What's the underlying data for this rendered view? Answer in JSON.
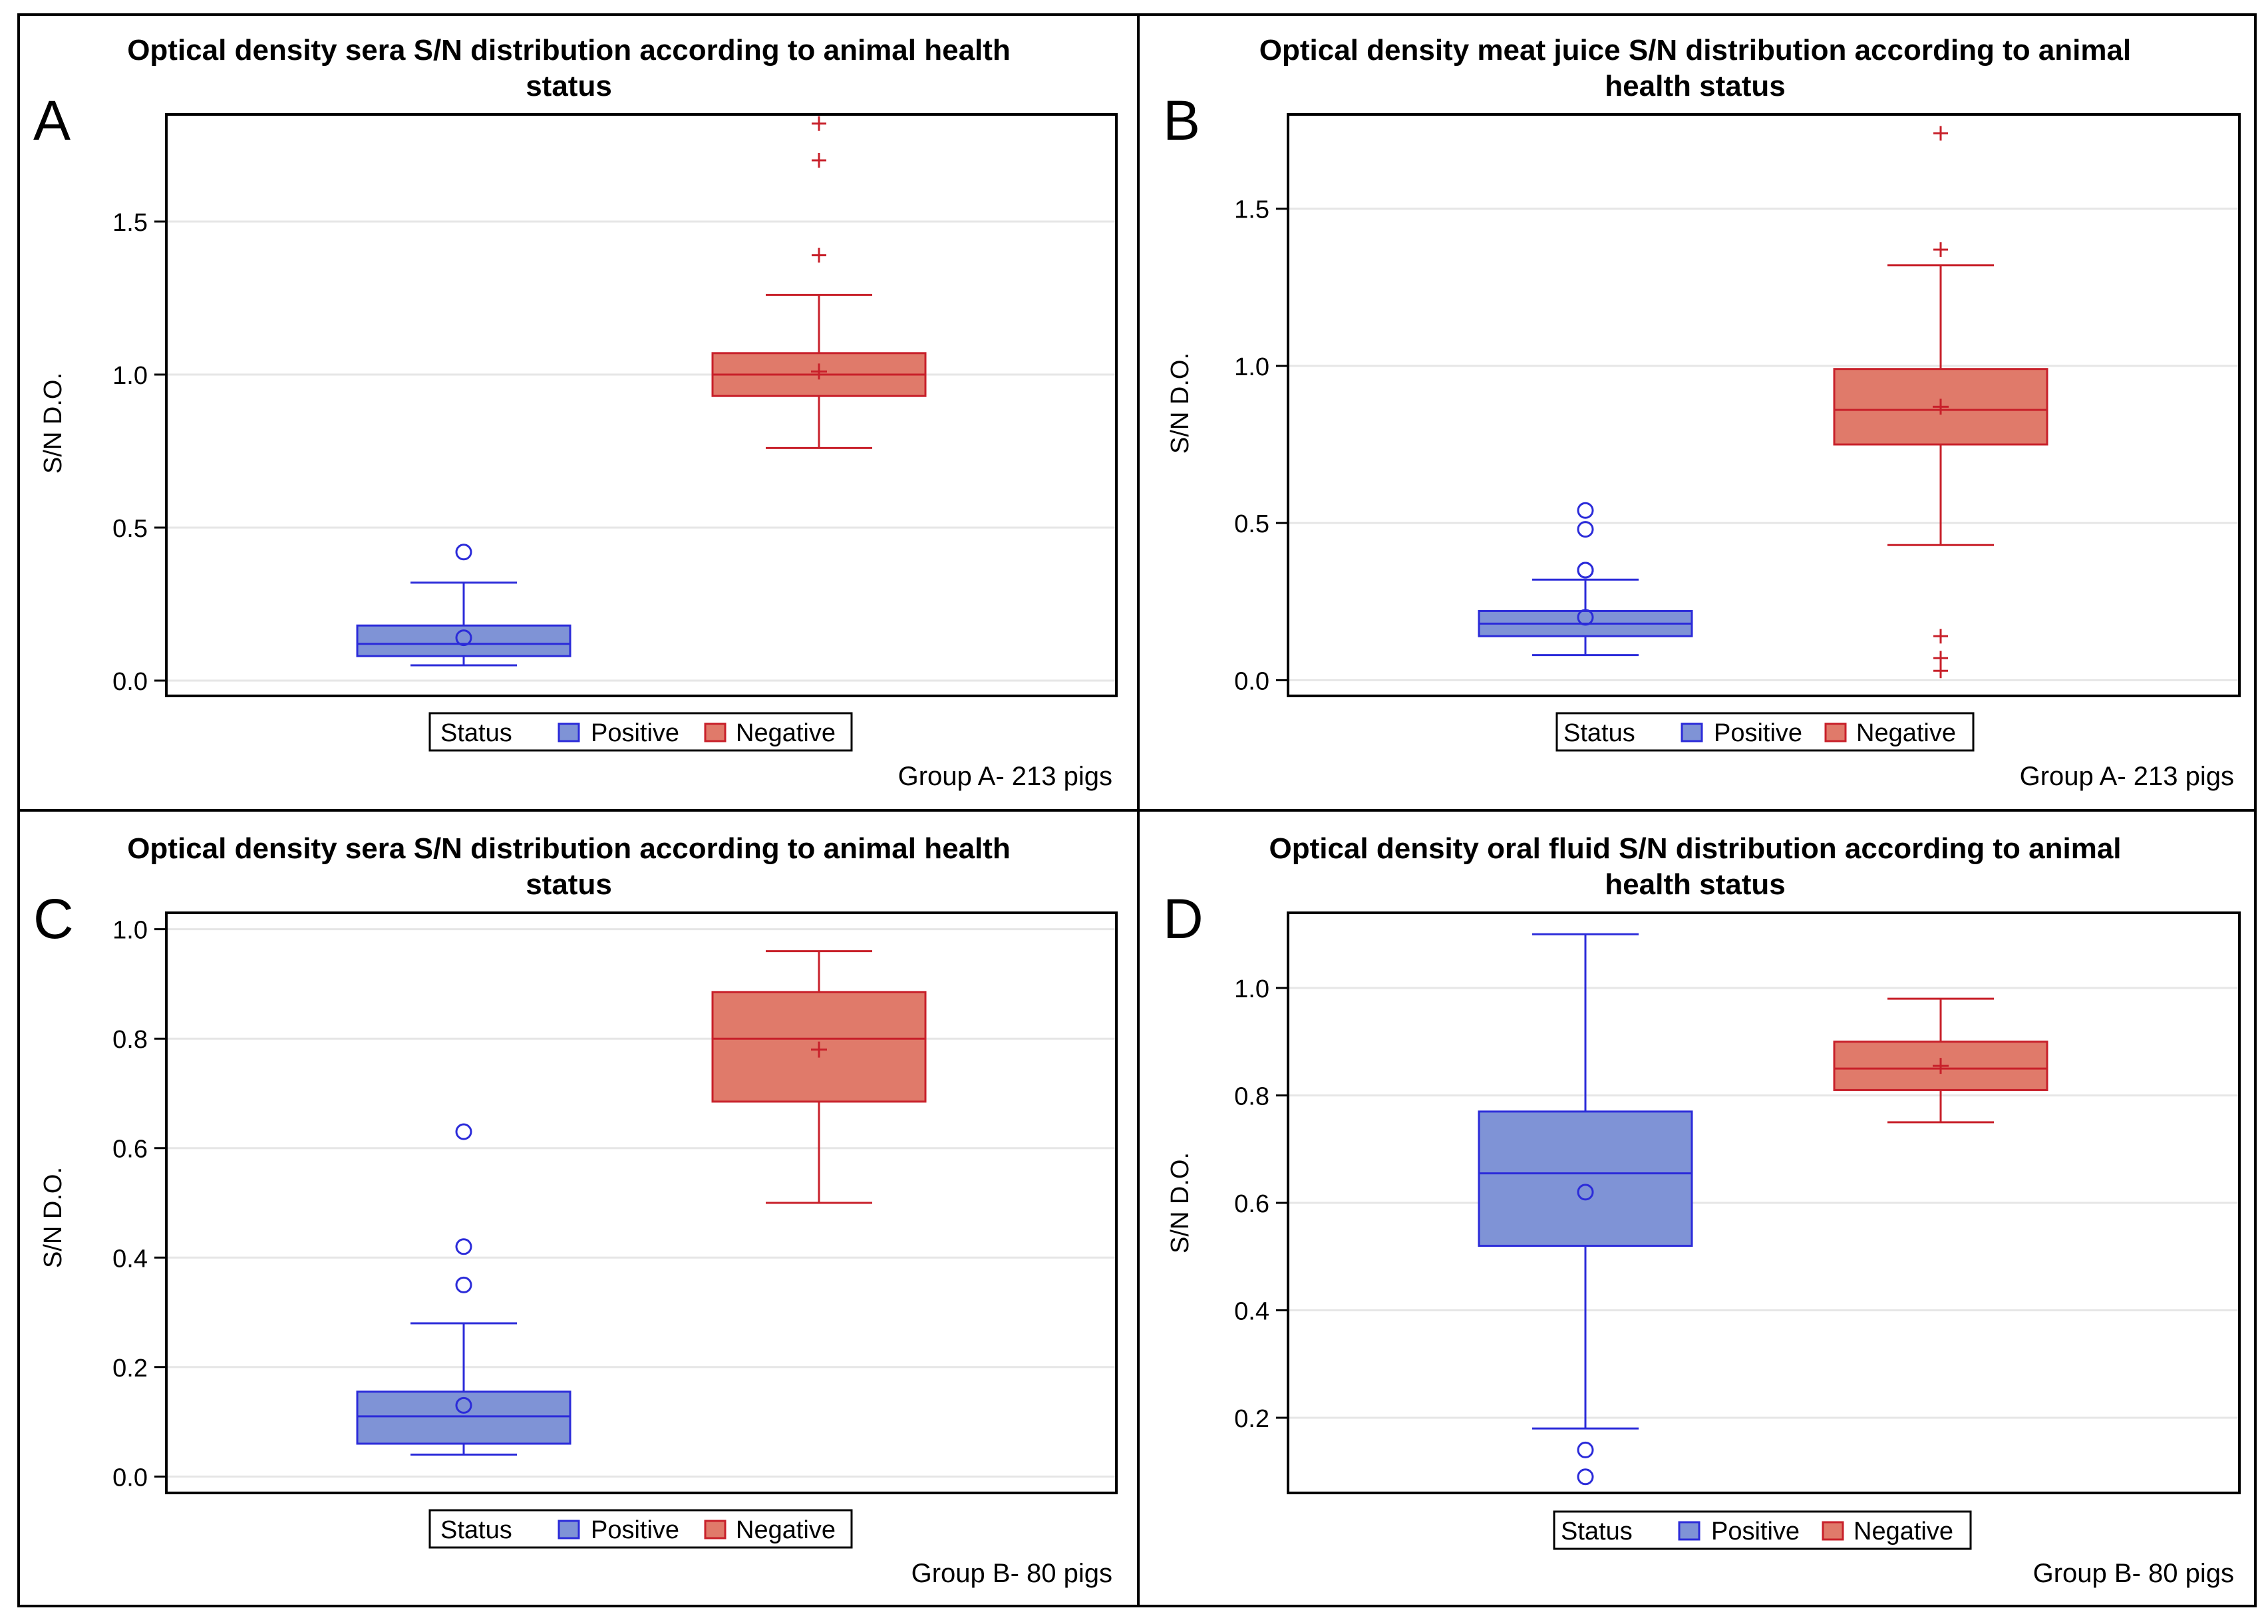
{
  "panels": [
    {
      "letter": "A",
      "title_lines": [
        "Optical density sera S/N distribution according to animal health",
        "status"
      ],
      "ylabel": "S/N D.O.",
      "footnote": "Group A- 213 pigs",
      "legend": {
        "title": "Status",
        "items": [
          "Positive",
          "Negative"
        ]
      },
      "yticks": [
        "0.0",
        "0.5",
        "1.0",
        "1.5"
      ]
    },
    {
      "letter": "B",
      "title_lines": [
        "Optical density meat juice S/N distribution according to animal",
        "health status"
      ],
      "ylabel": "S/N D.O.",
      "footnote": "Group A- 213 pigs",
      "legend": {
        "title": "Status",
        "items": [
          "Positive",
          "Negative"
        ]
      },
      "yticks": [
        "0.0",
        "0.5",
        "1.0",
        "1.5"
      ]
    },
    {
      "letter": "C",
      "title_lines": [
        "Optical density sera S/N distribution according to animal health",
        "status"
      ],
      "ylabel": "S/N D.O.",
      "footnote": "Group B- 80 pigs",
      "legend": {
        "title": "Status",
        "items": [
          "Positive",
          "Negative"
        ]
      },
      "yticks": [
        "0.0",
        "0.2",
        "0.4",
        "0.6",
        "0.8",
        "1.0"
      ]
    },
    {
      "letter": "D",
      "title_lines": [
        "Optical density oral fluid S/N distribution according to animal",
        "health status"
      ],
      "ylabel": "S/N D.O.",
      "footnote": "Group B- 80 pigs",
      "legend": {
        "title": "Status",
        "items": [
          "Positive",
          "Negative"
        ]
      },
      "yticks": [
        "0.2",
        "0.4",
        "0.6",
        "0.8",
        "1.0"
      ]
    }
  ],
  "colors": {
    "positive_fill": "#7f93d6",
    "positive_line": "#2b2bd9",
    "negative_fill": "#e07a6a",
    "negative_line": "#c8202a",
    "grid": "#e6e6e6"
  },
  "chart_data": [
    {
      "type": "box",
      "panel": "A",
      "ylim": [
        -0.05,
        1.85
      ],
      "yticks": [
        0.0,
        0.5,
        1.0,
        1.5
      ],
      "series": [
        {
          "name": "Positive",
          "whisker_low": 0.05,
          "q1": 0.08,
          "median": 0.12,
          "q3": 0.18,
          "whisker_high": 0.32,
          "mean": 0.14,
          "outliers": [
            0.42
          ]
        },
        {
          "name": "Negative",
          "whisker_low": 0.76,
          "q1": 0.93,
          "median": 1.0,
          "q3": 1.07,
          "whisker_high": 1.26,
          "mean": 1.01,
          "outliers": [
            1.39,
            1.7,
            1.82
          ]
        }
      ]
    },
    {
      "type": "box",
      "panel": "B",
      "ylim": [
        -0.05,
        1.8
      ],
      "yticks": [
        0.0,
        0.5,
        1.0,
        1.5
      ],
      "series": [
        {
          "name": "Positive",
          "whisker_low": 0.08,
          "q1": 0.14,
          "median": 0.18,
          "q3": 0.22,
          "whisker_high": 0.32,
          "mean": 0.2,
          "outliers": [
            0.35,
            0.35,
            0.48,
            0.54
          ]
        },
        {
          "name": "Negative",
          "whisker_low": 0.43,
          "q1": 0.75,
          "median": 0.86,
          "q3": 0.99,
          "whisker_high": 1.32,
          "mean": 0.87,
          "outliers": [
            0.03,
            0.07,
            0.14,
            1.37,
            1.74
          ]
        }
      ]
    },
    {
      "type": "box",
      "panel": "C",
      "ylim": [
        -0.03,
        1.03
      ],
      "yticks": [
        0.0,
        0.2,
        0.4,
        0.6,
        0.8,
        1.0
      ],
      "series": [
        {
          "name": "Positive",
          "whisker_low": 0.04,
          "q1": 0.06,
          "median": 0.11,
          "q3": 0.155,
          "whisker_high": 0.28,
          "mean": 0.13,
          "outliers": [
            0.35,
            0.42,
            0.63
          ]
        },
        {
          "name": "Negative",
          "whisker_low": 0.5,
          "q1": 0.685,
          "median": 0.8,
          "q3": 0.885,
          "whisker_high": 0.96,
          "mean": 0.78,
          "outliers": []
        }
      ]
    },
    {
      "type": "box",
      "panel": "D",
      "ylim": [
        0.06,
        1.14
      ],
      "yticks": [
        0.2,
        0.4,
        0.6,
        0.8,
        1.0
      ],
      "series": [
        {
          "name": "Positive",
          "whisker_low": 0.18,
          "q1": 0.52,
          "median": 0.655,
          "q3": 0.77,
          "whisker_high": 1.1,
          "mean": 0.62,
          "outliers": [
            0.09,
            0.14
          ]
        },
        {
          "name": "Negative",
          "whisker_low": 0.75,
          "q1": 0.81,
          "median": 0.85,
          "q3": 0.9,
          "whisker_high": 0.98,
          "mean": 0.855,
          "outliers": []
        }
      ]
    }
  ]
}
